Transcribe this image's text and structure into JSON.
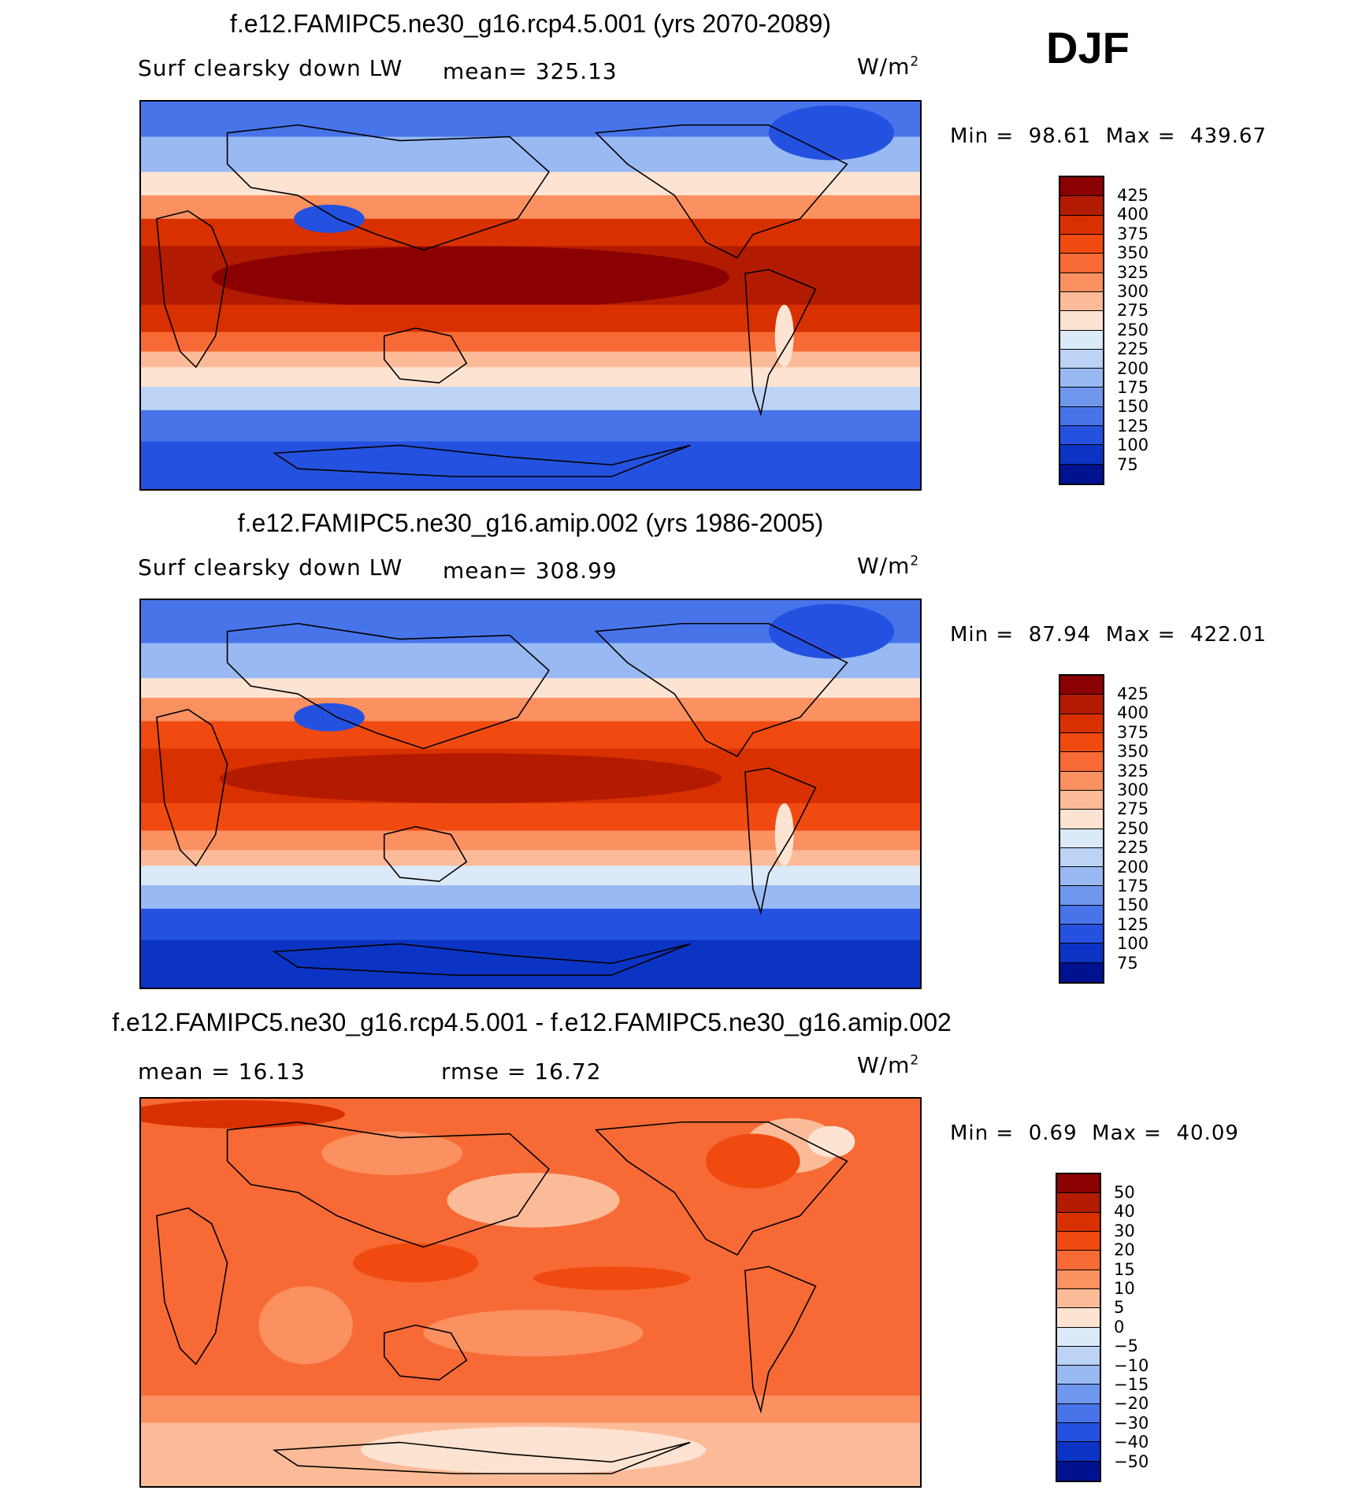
{
  "season": "DJF",
  "panels": [
    {
      "title": "f.e12.FAMIPC5.ne30_g16.rcp4.5.001 (yrs 2070-2089)",
      "variable": "Surf clearsky down LW",
      "stat1": "mean= 325.13",
      "stat2": "",
      "units_base": "W/m",
      "units_exp": "2",
      "min_label": "Min =",
      "min_value": "98.61",
      "max_label": "Max =",
      "max_value": "439.67",
      "colorbar": {
        "labels": [
          "425",
          "400",
          "375",
          "350",
          "325",
          "300",
          "275",
          "250",
          "225",
          "200",
          "175",
          "150",
          "125",
          "100",
          "75"
        ],
        "colors": [
          "#8b0000",
          "#b31b00",
          "#d93000",
          "#f04a10",
          "#f76a35",
          "#fb9060",
          "#fcbb98",
          "#fde3d2",
          "#dbe9f8",
          "#bcd3f5",
          "#99b9f3",
          "#6f97ee",
          "#4874ea",
          "#2451e0",
          "#0b34c4",
          "#00128f"
        ]
      }
    },
    {
      "title": "f.e12.FAMIPC5.ne30_g16.amip.002 (yrs 1986-2005)",
      "variable": "Surf clearsky down LW",
      "stat1": "mean= 308.99",
      "stat2": "",
      "units_base": "W/m",
      "units_exp": "2",
      "min_label": "Min =",
      "min_value": "87.94",
      "max_label": "Max =",
      "max_value": "422.01",
      "colorbar": {
        "labels": [
          "425",
          "400",
          "375",
          "350",
          "325",
          "300",
          "275",
          "250",
          "225",
          "200",
          "175",
          "150",
          "125",
          "100",
          "75"
        ],
        "colors": [
          "#8b0000",
          "#b31b00",
          "#d93000",
          "#f04a10",
          "#f76a35",
          "#fb9060",
          "#fcbb98",
          "#fde3d2",
          "#dbe9f8",
          "#bcd3f5",
          "#99b9f3",
          "#6f97ee",
          "#4874ea",
          "#2451e0",
          "#0b34c4",
          "#00128f"
        ]
      }
    },
    {
      "title": "f.e12.FAMIPC5.ne30_g16.rcp4.5.001 - f.e12.FAMIPC5.ne30_g16.amip.002",
      "variable": "",
      "stat1": "mean =  16.13",
      "stat2": "rmse =  16.72",
      "units_base": "W/m",
      "units_exp": "2",
      "min_label": "Min =",
      "min_value": "0.69",
      "max_label": "Max =",
      "max_value": "40.09",
      "colorbar": {
        "labels": [
          "50",
          "40",
          "30",
          "20",
          "15",
          "10",
          "5",
          "0",
          "−5",
          "−10",
          "−15",
          "−20",
          "−30",
          "−40",
          "−50"
        ],
        "colors": [
          "#8b0000",
          "#b31b00",
          "#d93000",
          "#f04a10",
          "#f76a35",
          "#fb9060",
          "#fcbb98",
          "#fde3d2",
          "#dbe9f8",
          "#bcd3f5",
          "#99b9f3",
          "#6f97ee",
          "#4874ea",
          "#2451e0",
          "#0b34c4",
          "#00128f"
        ]
      }
    }
  ]
}
